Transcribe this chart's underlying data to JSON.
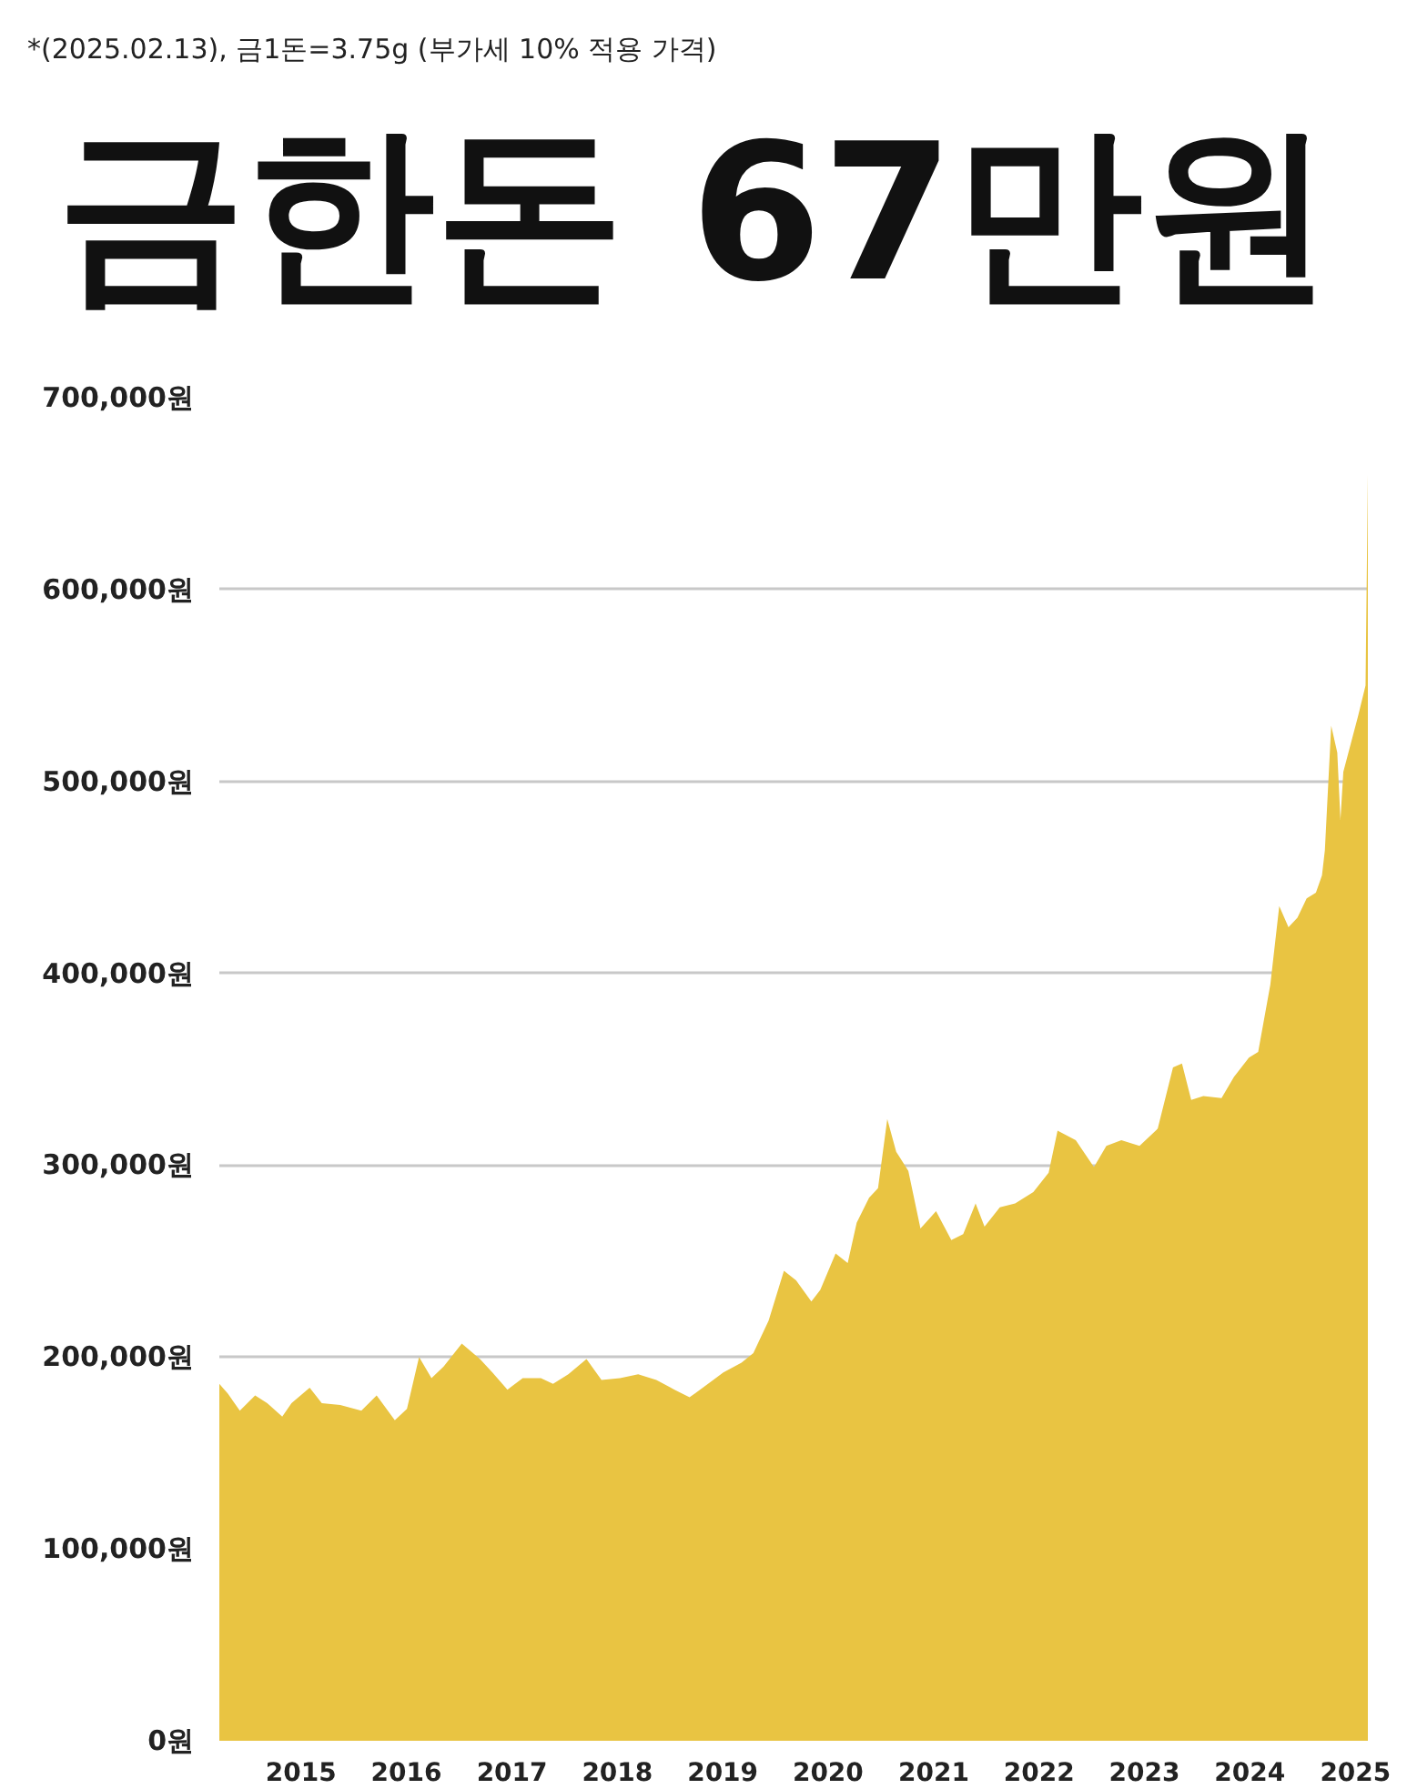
{
  "chart_data": {
    "type": "area",
    "title": "금한돈 67만원",
    "annotations": [
      "*(2025.02.13), 금1돈=3.75g (부가세 10% 적용 가격)"
    ],
    "x": [
      "2014-03-24",
      "2014-04-22",
      "2014-06-03",
      "2014-07-26",
      "2014-09-06",
      "2014-10-28",
      "2014-11-29",
      "2015-01-31",
      "2015-03-14",
      "2015-05-17",
      "2015-07-29",
      "2015-09-20",
      "2015-11-22",
      "2016-01-03",
      "2016-02-14",
      "2016-03-28",
      "2016-05-09",
      "2016-07-11",
      "2016-09-12",
      "2016-10-25",
      "2016-12-16",
      "2017-02-07",
      "2017-04-11",
      "2017-05-23",
      "2017-07-15",
      "2017-09-16",
      "2017-11-07",
      "2018-01-10",
      "2018-03-14",
      "2018-05-16",
      "2018-07-18",
      "2018-09-08",
      "2018-11-11",
      "2019-01-03",
      "2019-03-07",
      "2019-04-17",
      "2019-06-09",
      "2019-08-01",
      "2019-09-12",
      "2019-11-04",
      "2019-12-05",
      "2020-01-27",
      "2020-03-09",
      "2020-04-09",
      "2020-05-22",
      "2020-06-22",
      "2020-07-24",
      "2020-08-24",
      "2020-10-05",
      "2020-11-16",
      "2021-01-09",
      "2021-03-03",
      "2021-04-13",
      "2021-05-26",
      "2021-06-26",
      "2021-08-18",
      "2021-10-10",
      "2021-12-12",
      "2022-02-03",
      "2022-03-06",
      "2022-05-08",
      "2022-07-10",
      "2022-08-22",
      "2022-10-13",
      "2022-12-15",
      "2023-02-16",
      "2023-04-10",
      "2023-05-11",
      "2023-06-12",
      "2023-07-24",
      "2023-09-25",
      "2023-11-07",
      "2023-12-29",
      "2024-01-30",
      "2024-03-12",
      "2024-04-12",
      "2024-05-14",
      "2024-06-14",
      "2024-07-16",
      "2024-08-17",
      "2024-09-07",
      "2024-09-17",
      "2024-10-09",
      "2024-10-30",
      "2024-11-10",
      "2024-11-20",
      "2025-01-10",
      "2025-02-05",
      "2025-02-13"
    ],
    "values": [
      186000,
      181000,
      172000,
      180000,
      176000,
      169000,
      176000,
      184000,
      176000,
      175000,
      172000,
      180000,
      167000,
      173000,
      200000,
      189000,
      195000,
      207000,
      199000,
      192000,
      183000,
      189000,
      189000,
      186000,
      191000,
      199000,
      188000,
      189000,
      191000,
      188000,
      183000,
      179000,
      186000,
      192000,
      197000,
      202000,
      219000,
      245000,
      240000,
      229000,
      235000,
      254000,
      249000,
      270000,
      283000,
      288000,
      324000,
      307000,
      297000,
      267000,
      276000,
      261000,
      264000,
      280000,
      268000,
      278000,
      280000,
      286000,
      296000,
      318000,
      313000,
      299000,
      310000,
      313000,
      310000,
      319000,
      351000,
      353000,
      334000,
      336000,
      335000,
      346000,
      356000,
      359000,
      394000,
      435000,
      424000,
      429000,
      439000,
      442000,
      451000,
      464000,
      529000,
      515000,
      480000,
      505000,
      534000,
      550000,
      660000
    ],
    "color": "#e9c442",
    "xlim": [
      "2014-03-24",
      "2025-02-13"
    ],
    "xticks": [
      "2015",
      "2016",
      "2017",
      "2018",
      "2019",
      "2020",
      "2021",
      "2022",
      "2023",
      "2024",
      "2025"
    ],
    "ylim": [
      0,
      700000
    ],
    "yticks": [
      {
        "value": 0,
        "label": "0원"
      },
      {
        "value": 100000,
        "label": "100,000원"
      },
      {
        "value": 200000,
        "label": "200,000원"
      },
      {
        "value": 300000,
        "label": "300,000원"
      },
      {
        "value": 400000,
        "label": "400,000원"
      },
      {
        "value": 500000,
        "label": "500,000원"
      },
      {
        "value": 600000,
        "label": "600,000원"
      },
      {
        "value": 700000,
        "label": "700,000원"
      }
    ],
    "grid": "y"
  }
}
